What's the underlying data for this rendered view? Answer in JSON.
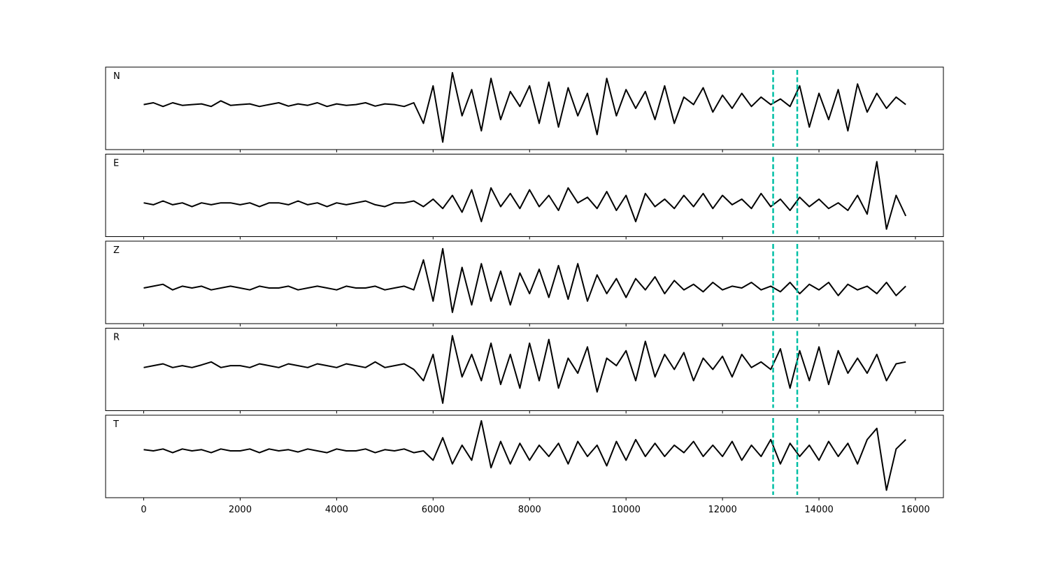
{
  "chart_data": [
    {
      "type": "line",
      "title": "N",
      "color": "#000000",
      "vline_color": "#00bfa5",
      "vlines": [
        13050,
        13550
      ],
      "xlim": [
        -790,
        16580
      ],
      "ylim": [
        -1.1,
        1.1
      ],
      "xticks": [
        0,
        2000,
        4000,
        6000,
        8000,
        10000,
        12000,
        14000,
        16000
      ],
      "x": [
        0,
        200,
        400,
        600,
        800,
        1000,
        1200,
        1400,
        1600,
        1800,
        2000,
        2200,
        2400,
        2600,
        2800,
        3000,
        3200,
        3400,
        3600,
        3800,
        4000,
        4200,
        4400,
        4600,
        4800,
        5000,
        5200,
        5400,
        5600,
        5800,
        6000,
        6200,
        6400,
        6600,
        6800,
        7000,
        7200,
        7400,
        7600,
        7800,
        8000,
        8200,
        8400,
        8600,
        8800,
        9000,
        9200,
        9400,
        9600,
        9800,
        10000,
        10200,
        10400,
        10600,
        10800,
        11000,
        11200,
        11400,
        11600,
        11800,
        12000,
        12200,
        12400,
        12600,
        12800,
        13000,
        13200,
        13400,
        13600,
        13800,
        14000,
        14200,
        14400,
        14600,
        14800,
        15000,
        15200,
        15400,
        15600,
        15800
      ],
      "values": [
        0.1,
        0.15,
        0.05,
        0.15,
        0.08,
        0.1,
        0.12,
        0.05,
        0.2,
        0.08,
        0.1,
        0.12,
        0.05,
        0.1,
        0.15,
        0.06,
        0.12,
        0.08,
        0.15,
        0.05,
        0.12,
        0.08,
        0.1,
        0.15,
        0.06,
        0.12,
        0.1,
        0.05,
        0.15,
        -0.4,
        0.6,
        -0.9,
        0.95,
        -0.2,
        0.5,
        -0.6,
        0.8,
        -0.3,
        0.45,
        0.05,
        0.6,
        -0.4,
        0.7,
        -0.5,
        0.55,
        -0.2,
        0.4,
        -0.7,
        0.8,
        -0.2,
        0.5,
        0.0,
        0.45,
        -0.3,
        0.6,
        -0.4,
        0.3,
        0.1,
        0.55,
        -0.1,
        0.35,
        0.0,
        0.4,
        0.05,
        0.3,
        0.1,
        0.25,
        0.05,
        0.6,
        -0.5,
        0.4,
        -0.3,
        0.5,
        -0.6,
        0.65,
        -0.1,
        0.4,
        0.0,
        0.3,
        0.1
      ]
    },
    {
      "type": "line",
      "title": "E",
      "color": "#000000",
      "vline_color": "#00bfa5",
      "vlines": [
        13050,
        13550
      ],
      "xlim": [
        -790,
        16580
      ],
      "ylim": [
        -1.1,
        1.1
      ],
      "xticks": [
        0,
        2000,
        4000,
        6000,
        8000,
        10000,
        12000,
        14000,
        16000
      ],
      "x": [
        0,
        200,
        400,
        600,
        800,
        1000,
        1200,
        1400,
        1600,
        1800,
        2000,
        2200,
        2400,
        2600,
        2800,
        3000,
        3200,
        3400,
        3600,
        3800,
        4000,
        4200,
        4400,
        4600,
        4800,
        5000,
        5200,
        5400,
        5600,
        5800,
        6000,
        6200,
        6400,
        6600,
        6800,
        7000,
        7200,
        7400,
        7600,
        7800,
        8000,
        8200,
        8400,
        8600,
        8800,
        9000,
        9200,
        9400,
        9600,
        9800,
        10000,
        10200,
        10400,
        10600,
        10800,
        11000,
        11200,
        11400,
        11600,
        11800,
        12000,
        12200,
        12400,
        12600,
        12800,
        13000,
        13200,
        13400,
        13600,
        13800,
        14000,
        14200,
        14400,
        14600,
        14800,
        15000,
        15200,
        15400,
        15600,
        15800
      ],
      "values": [
        -0.2,
        -0.25,
        -0.15,
        -0.25,
        -0.2,
        -0.3,
        -0.2,
        -0.25,
        -0.2,
        -0.2,
        -0.25,
        -0.2,
        -0.3,
        -0.2,
        -0.2,
        -0.25,
        -0.15,
        -0.25,
        -0.2,
        -0.3,
        -0.2,
        -0.25,
        -0.2,
        -0.15,
        -0.25,
        -0.3,
        -0.2,
        -0.2,
        -0.15,
        -0.3,
        -0.1,
        -0.35,
        0.0,
        -0.45,
        0.15,
        -0.7,
        0.2,
        -0.3,
        0.05,
        -0.35,
        0.15,
        -0.3,
        0.0,
        -0.4,
        0.2,
        -0.2,
        -0.05,
        -0.35,
        0.1,
        -0.4,
        0.0,
        -0.7,
        0.05,
        -0.3,
        -0.1,
        -0.35,
        0.0,
        -0.3,
        0.05,
        -0.35,
        0.0,
        -0.25,
        -0.1,
        -0.35,
        0.05,
        -0.3,
        -0.1,
        -0.4,
        -0.05,
        -0.3,
        -0.1,
        -0.35,
        -0.2,
        -0.4,
        0.0,
        -0.5,
        0.9,
        -0.9,
        0.0,
        -0.55
      ]
    },
    {
      "type": "line",
      "title": "Z",
      "color": "#000000",
      "vline_color": "#00bfa5",
      "vlines": [
        13050,
        13550
      ],
      "xlim": [
        -790,
        16580
      ],
      "ylim": [
        -1.1,
        1.1
      ],
      "xticks": [
        0,
        2000,
        4000,
        6000,
        8000,
        10000,
        12000,
        14000,
        16000
      ],
      "x": [
        0,
        200,
        400,
        600,
        800,
        1000,
        1200,
        1400,
        1600,
        1800,
        2000,
        2200,
        2400,
        2600,
        2800,
        3000,
        3200,
        3400,
        3600,
        3800,
        4000,
        4200,
        4400,
        4600,
        4800,
        5000,
        5200,
        5400,
        5600,
        5800,
        6000,
        6200,
        6400,
        6600,
        6800,
        7000,
        7200,
        7400,
        7600,
        7800,
        8000,
        8200,
        8400,
        8600,
        8800,
        9000,
        9200,
        9400,
        9600,
        9800,
        10000,
        10200,
        10400,
        10600,
        10800,
        11000,
        11200,
        11400,
        11600,
        11800,
        12000,
        12200,
        12400,
        12600,
        12800,
        13000,
        13200,
        13400,
        13600,
        13800,
        14000,
        14200,
        14400,
        14600,
        14800,
        15000,
        15200,
        15400,
        15600,
        15800
      ],
      "values": [
        -0.15,
        -0.1,
        -0.05,
        -0.2,
        -0.1,
        -0.15,
        -0.1,
        -0.2,
        -0.15,
        -0.1,
        -0.15,
        -0.2,
        -0.1,
        -0.15,
        -0.15,
        -0.1,
        -0.2,
        -0.15,
        -0.1,
        -0.15,
        -0.2,
        -0.1,
        -0.15,
        -0.15,
        -0.1,
        -0.2,
        -0.15,
        -0.1,
        -0.2,
        0.6,
        -0.5,
        0.9,
        -0.8,
        0.4,
        -0.6,
        0.5,
        -0.5,
        0.3,
        -0.6,
        0.25,
        -0.3,
        0.35,
        -0.4,
        0.45,
        -0.45,
        0.5,
        -0.5,
        0.2,
        -0.3,
        0.1,
        -0.4,
        0.1,
        -0.2,
        0.15,
        -0.3,
        0.05,
        -0.2,
        -0.05,
        -0.25,
        0.0,
        -0.2,
        -0.1,
        -0.15,
        0.0,
        -0.2,
        -0.1,
        -0.25,
        0.0,
        -0.3,
        -0.05,
        -0.2,
        0.0,
        -0.35,
        -0.05,
        -0.2,
        -0.1,
        -0.3,
        0.0,
        -0.35,
        -0.1
      ]
    },
    {
      "type": "line",
      "title": "R",
      "color": "#000000",
      "vline_color": "#00bfa5",
      "vlines": [
        13050,
        13550
      ],
      "xlim": [
        -790,
        16580
      ],
      "ylim": [
        -1.1,
        1.1
      ],
      "xticks": [
        0,
        2000,
        4000,
        6000,
        8000,
        10000,
        12000,
        14000,
        16000
      ],
      "x": [
        0,
        200,
        400,
        600,
        800,
        1000,
        1200,
        1400,
        1600,
        1800,
        2000,
        2200,
        2400,
        2600,
        2800,
        3000,
        3200,
        3400,
        3600,
        3800,
        4000,
        4200,
        4400,
        4600,
        4800,
        5000,
        5200,
        5400,
        5600,
        5800,
        6000,
        6200,
        6400,
        6600,
        6800,
        7000,
        7200,
        7400,
        7600,
        7800,
        8000,
        8200,
        8400,
        8600,
        8800,
        9000,
        9200,
        9400,
        9600,
        9800,
        10000,
        10200,
        10400,
        10600,
        10800,
        11000,
        11200,
        11400,
        11600,
        11800,
        12000,
        12200,
        12400,
        12600,
        12800,
        13000,
        13200,
        13400,
        13600,
        13800,
        14000,
        14200,
        14400,
        14600,
        14800,
        15000,
        15200,
        15400,
        15600,
        15800
      ],
      "values": [
        0.05,
        0.1,
        0.15,
        0.05,
        0.1,
        0.05,
        0.12,
        0.2,
        0.05,
        0.1,
        0.1,
        0.05,
        0.15,
        0.1,
        0.05,
        0.15,
        0.1,
        0.05,
        0.15,
        0.1,
        0.05,
        0.15,
        0.1,
        0.05,
        0.2,
        0.05,
        0.1,
        0.15,
        0.0,
        -0.3,
        0.4,
        -0.9,
        0.9,
        -0.2,
        0.4,
        -0.3,
        0.7,
        -0.4,
        0.4,
        -0.5,
        0.7,
        -0.3,
        0.8,
        -0.5,
        0.3,
        -0.1,
        0.6,
        -0.6,
        0.3,
        0.1,
        0.5,
        -0.3,
        0.75,
        -0.2,
        0.4,
        0.0,
        0.45,
        -0.3,
        0.3,
        0.0,
        0.35,
        -0.2,
        0.4,
        0.05,
        0.2,
        0.0,
        0.55,
        -0.5,
        0.5,
        -0.3,
        0.6,
        -0.4,
        0.5,
        -0.1,
        0.3,
        -0.1,
        0.4,
        -0.3,
        0.15,
        0.2
      ]
    },
    {
      "type": "line",
      "title": "T",
      "color": "#000000",
      "vline_color": "#00bfa5",
      "vlines": [
        13050,
        13550
      ],
      "xlim": [
        -790,
        16580
      ],
      "ylim": [
        -1.1,
        1.1
      ],
      "xticks": [
        0,
        2000,
        4000,
        6000,
        8000,
        10000,
        12000,
        14000,
        16000
      ],
      "x": [
        0,
        200,
        400,
        600,
        800,
        1000,
        1200,
        1400,
        1600,
        1800,
        2000,
        2200,
        2400,
        2600,
        2800,
        3000,
        3200,
        3400,
        3600,
        3800,
        4000,
        4200,
        4400,
        4600,
        4800,
        5000,
        5200,
        5400,
        5600,
        5800,
        6000,
        6200,
        6400,
        6600,
        6800,
        7000,
        7200,
        7400,
        7600,
        7800,
        8000,
        8200,
        8400,
        8600,
        8800,
        9000,
        9200,
        9400,
        9600,
        9800,
        10000,
        10200,
        10400,
        10600,
        10800,
        11000,
        11200,
        11400,
        11600,
        11800,
        12000,
        12200,
        12400,
        12600,
        12800,
        13000,
        13200,
        13400,
        13600,
        13800,
        14000,
        14200,
        14400,
        14600,
        14800,
        15000,
        15200,
        15400,
        15600,
        15800
      ],
      "values": [
        0.18,
        0.15,
        0.2,
        0.1,
        0.2,
        0.15,
        0.18,
        0.1,
        0.2,
        0.15,
        0.15,
        0.2,
        0.1,
        0.2,
        0.15,
        0.18,
        0.12,
        0.2,
        0.15,
        0.1,
        0.2,
        0.15,
        0.15,
        0.2,
        0.1,
        0.18,
        0.15,
        0.2,
        0.1,
        0.15,
        -0.1,
        0.5,
        -0.2,
        0.3,
        -0.1,
        0.95,
        -0.3,
        0.4,
        -0.2,
        0.35,
        -0.1,
        0.3,
        0.0,
        0.35,
        -0.2,
        0.4,
        0.0,
        0.3,
        -0.25,
        0.4,
        -0.1,
        0.45,
        0.0,
        0.35,
        0.0,
        0.3,
        0.1,
        0.4,
        0.0,
        0.3,
        0.0,
        0.4,
        -0.1,
        0.3,
        0.0,
        0.45,
        -0.2,
        0.35,
        0.0,
        0.3,
        -0.1,
        0.4,
        0.0,
        0.35,
        -0.2,
        0.45,
        0.75,
        -0.9,
        0.2,
        0.45
      ]
    }
  ]
}
